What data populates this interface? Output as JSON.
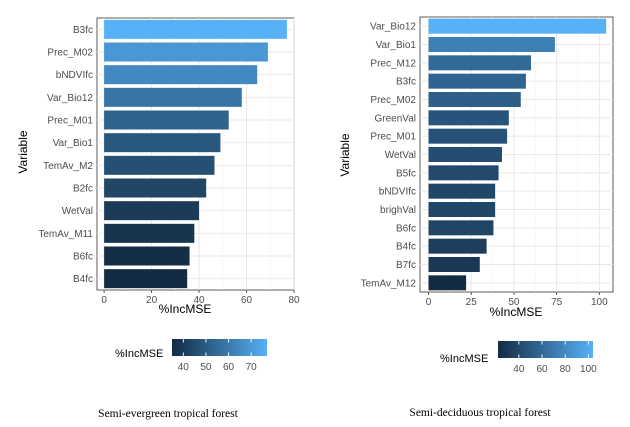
{
  "chart_data": [
    {
      "type": "bar",
      "orientation": "horizontal",
      "caption": "Semi-evergreen tropical forest",
      "xlabel": "%IncMSE",
      "ylabel": "Variable",
      "xlim": [
        -3,
        80
      ],
      "xticks": [
        0,
        20,
        40,
        60,
        80
      ],
      "categories": [
        "B3fc",
        "Prec_M02",
        "bNDVIfc",
        "Var_Bio12",
        "Prec_M01",
        "Var_Bio1",
        "TemAv_M2",
        "B2fc",
        "WetVal",
        "TemAv_M11",
        "B6fc",
        "B4fc"
      ],
      "values": [
        77,
        69,
        64.5,
        58,
        52.5,
        49,
        46.5,
        43,
        40,
        38,
        36,
        35
      ],
      "color_range": [
        35,
        77
      ],
      "legend": {
        "title": "%IncMSE",
        "range": [
          35,
          77
        ],
        "ticks": [
          40,
          50,
          60,
          70
        ],
        "position": "bottom"
      },
      "colors": {
        "low": "#132b43",
        "high": "#56b1f7"
      },
      "grid": true
    },
    {
      "type": "bar",
      "orientation": "horizontal",
      "caption": "Semi-deciduous tropical forest",
      "xlabel": "%IncMSE",
      "ylabel": "Variable",
      "xlim": [
        -5,
        108
      ],
      "xticks": [
        0,
        25,
        50,
        75,
        100
      ],
      "categories": [
        "Var_Bio12",
        "Var_Bio1",
        "Prec_M12",
        "B3fc",
        "Prec_M02",
        "GreenVal",
        "Prec_M01",
        "WetVal",
        "B5fc",
        "bNDVIfc",
        "brighVal",
        "B6fc",
        "B4fc",
        "B7fc",
        "TemAv_M12"
      ],
      "values": [
        104,
        74,
        60,
        57,
        54,
        47,
        46,
        43,
        41,
        39,
        39,
        38,
        34,
        30,
        22
      ],
      "color_range": [
        22,
        104
      ],
      "legend": {
        "title": "%IncMSE",
        "range": [
          22,
          104
        ],
        "ticks": [
          40,
          60,
          80,
          100
        ],
        "position": "bottom"
      },
      "colors": {
        "low": "#132b43",
        "high": "#56b1f7"
      },
      "grid": true
    }
  ]
}
